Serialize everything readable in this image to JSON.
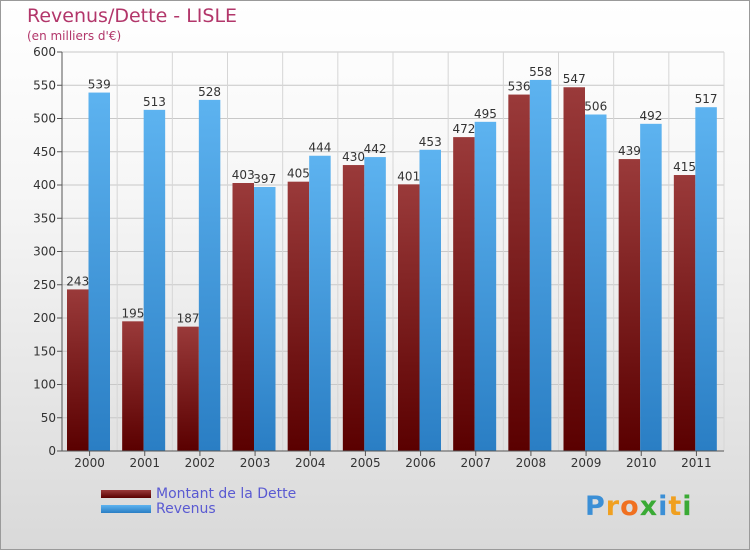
{
  "title": "Revenus/Dette - LISLE",
  "subtitle": "(en milliers d'€)",
  "colors": {
    "dette": "#7a1a1a",
    "revenus": "#3f9de2",
    "title": "#b2366a",
    "legend_text": "#5a5ad2"
  },
  "logo": {
    "text": "Proxiti",
    "letters": [
      "P",
      "r",
      "o",
      "x",
      "i",
      "t",
      "i"
    ],
    "letter_colors": [
      "#3b8fd6",
      "#f0a020",
      "#f07020",
      "#3aaa35",
      "#3b8fd6",
      "#f0a020",
      "#3aaa35"
    ]
  },
  "chart_data": {
    "type": "bar",
    "categories": [
      "2000",
      "2001",
      "2002",
      "2003",
      "2004",
      "2005",
      "2006",
      "2007",
      "2008",
      "2009",
      "2010",
      "2011"
    ],
    "series": [
      {
        "name": "Montant de la Dette",
        "values": [
          243,
          195,
          187,
          403,
          405,
          430,
          401,
          472,
          536,
          547,
          439,
          415
        ]
      },
      {
        "name": "Revenus",
        "values": [
          539,
          513,
          528,
          397,
          444,
          442,
          453,
          495,
          558,
          506,
          492,
          517
        ]
      }
    ],
    "ylim": [
      0,
      600
    ],
    "yticks": [
      0,
      50,
      100,
      150,
      200,
      250,
      300,
      350,
      400,
      450,
      500,
      550,
      600
    ],
    "grid": true,
    "legend_position": "bottom-left"
  }
}
